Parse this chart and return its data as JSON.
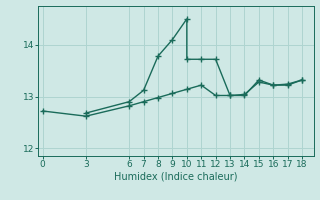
{
  "title": "",
  "xlabel": "Humidex (Indice chaleur)",
  "background_color": "#cfe8e5",
  "grid_color": "#aed4d0",
  "line_color": "#1a6b5a",
  "line1_x": [
    3,
    6,
    7,
    8,
    9,
    10,
    10,
    11,
    12,
    13,
    14,
    15,
    16,
    17,
    18
  ],
  "line1_y": [
    12.68,
    12.9,
    13.12,
    13.78,
    14.1,
    14.5,
    13.72,
    13.72,
    13.72,
    13.02,
    13.02,
    13.32,
    13.22,
    13.22,
    13.32
  ],
  "line2_x": [
    0,
    3,
    6,
    7,
    8,
    9,
    10,
    11,
    12,
    13,
    14,
    15,
    16,
    17,
    18
  ],
  "line2_y": [
    12.72,
    12.62,
    12.82,
    12.9,
    12.98,
    13.06,
    13.14,
    13.22,
    13.02,
    13.02,
    13.04,
    13.28,
    13.22,
    13.24,
    13.32
  ],
  "xlim": [
    -0.3,
    18.8
  ],
  "ylim": [
    11.85,
    14.75
  ],
  "xticks": [
    0,
    3,
    6,
    7,
    8,
    9,
    10,
    11,
    12,
    13,
    14,
    15,
    16,
    17,
    18
  ],
  "yticks": [
    12,
    13,
    14
  ],
  "marker": "+",
  "marker_size": 4,
  "linewidth": 1.0,
  "tick_fontsize": 6.5,
  "xlabel_fontsize": 7
}
